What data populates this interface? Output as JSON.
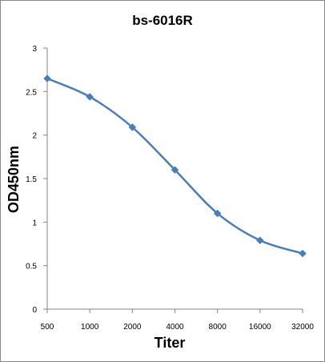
{
  "chart_data": {
    "type": "line",
    "title": "bs-6016R",
    "xlabel": "Titer",
    "ylabel": "OD450nm",
    "categories": [
      "500",
      "1000",
      "2000",
      "4000",
      "8000",
      "16000",
      "32000"
    ],
    "series": [
      {
        "values": [
          2.65,
          2.44,
          2.09,
          1.6,
          1.1,
          0.79,
          0.64
        ],
        "color": "#4a7ebb"
      }
    ],
    "ylim": [
      0,
      3
    ],
    "yticks": [
      "0",
      "0.5",
      "1",
      "1.5",
      "2",
      "2.5",
      "3"
    ],
    "grid": false,
    "legend": "none",
    "marker": "diamond",
    "smooth": true
  }
}
